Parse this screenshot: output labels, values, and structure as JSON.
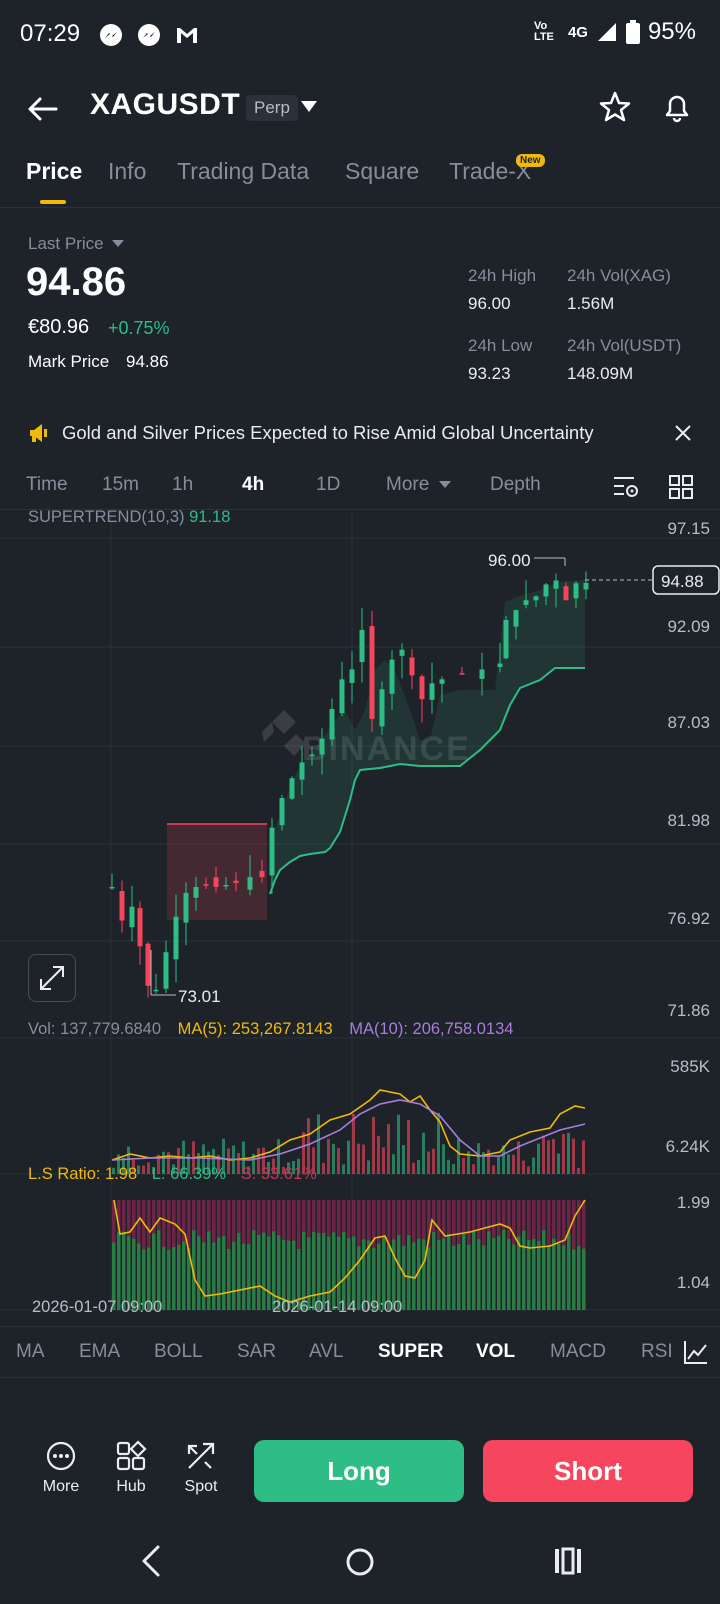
{
  "status_bar": {
    "time": "07:29",
    "network": "4G",
    "volte": "Vo LTE",
    "battery": "95%",
    "icons": [
      "messenger-icon",
      "messenger-icon",
      "gmail-icon",
      "signal-icon",
      "battery-icon"
    ]
  },
  "header": {
    "symbol": "XAGUSDT",
    "badge": "Perp",
    "icons": [
      "back-arrow-icon",
      "caret-down-icon",
      "star-icon",
      "bell-icon"
    ]
  },
  "tabs": [
    {
      "label": "Price",
      "active": true
    },
    {
      "label": "Info",
      "active": false
    },
    {
      "label": "Trading Data",
      "active": false
    },
    {
      "label": "Square",
      "active": false
    },
    {
      "label": "Trade-X",
      "active": false,
      "badge": "New"
    }
  ],
  "price": {
    "last_price_label": "Last Price",
    "last_price": "94.86",
    "eur_price": "€80.96",
    "change_pct": "+0.75%",
    "mark_label": "Mark Price",
    "mark_value": "94.86",
    "stats": [
      {
        "label": "24h High",
        "value": "96.00"
      },
      {
        "label": "24h Vol(XAG)",
        "value": "1.56M"
      },
      {
        "label": "24h Low",
        "value": "93.23"
      },
      {
        "label": "24h Vol(USDT)",
        "value": "148.09M"
      }
    ]
  },
  "news": {
    "text": "Gold and Silver Prices Expected to Rise Amid Global Uncertainty",
    "icons": [
      "megaphone-icon",
      "close-icon"
    ]
  },
  "timeframes": [
    {
      "label": "Time",
      "active": false
    },
    {
      "label": "15m",
      "active": false
    },
    {
      "label": "1h",
      "active": false
    },
    {
      "label": "4h",
      "active": true
    },
    {
      "label": "1D",
      "active": false
    },
    {
      "label": "More",
      "active": false
    },
    {
      "label": "Depth",
      "active": false
    }
  ],
  "chart_legends": {
    "supertrend_label": "SUPERTREND(10,3)",
    "supertrend_value": "91.18",
    "vol_label": "Vol: 137,779.6840",
    "ma5": "MA(5): 253,267.8143",
    "ma10": "MA(10): 206,758.0134",
    "ls_label": "L.S Ratio: 1.98",
    "ls_long": "L: 66.39%",
    "ls_short": "S: 33.61%"
  },
  "chart_data": {
    "type": "candlestick",
    "watermark": "BINANCE",
    "price_axis": [
      "97.15",
      "92.09",
      "87.03",
      "81.98",
      "76.92",
      "71.86"
    ],
    "volume_axis": [
      "585K",
      "6.24K"
    ],
    "ratio_axis": [
      "1.99",
      "1.04"
    ],
    "time_axis": [
      "2026-01-07 09:00",
      "2026-01-14 09:00"
    ],
    "high_marker": "96.00",
    "low_marker": "73.01",
    "current_price_tag": "94.88",
    "ylim": [
      71.86,
      97.15
    ],
    "candles_close_sample": [
      79.5,
      78.2,
      77.0,
      74.5,
      74.2,
      76.8,
      79.2,
      79.6,
      79.7,
      79.9,
      80.0,
      80.2,
      81.5,
      84.0,
      86.0,
      87.5,
      90.8,
      88.0,
      92.5,
      87.0,
      91.5,
      89.5,
      88.0,
      90.4,
      90.5,
      90.8,
      91.2,
      93.5,
      94.0,
      95.0,
      94.5,
      94.86
    ]
  },
  "indicators": [
    {
      "label": "MA",
      "active": false
    },
    {
      "label": "EMA",
      "active": false
    },
    {
      "label": "BOLL",
      "active": false
    },
    {
      "label": "SAR",
      "active": false
    },
    {
      "label": "AVL",
      "active": false
    },
    {
      "label": "SUPER",
      "active": true
    },
    {
      "label": "VOL",
      "active": true
    },
    {
      "label": "MACD",
      "active": false
    },
    {
      "label": "RSI",
      "active": false
    }
  ],
  "actions": {
    "more": "More",
    "hub": "Hub",
    "spot": "Spot",
    "long": "Long",
    "short": "Short"
  }
}
